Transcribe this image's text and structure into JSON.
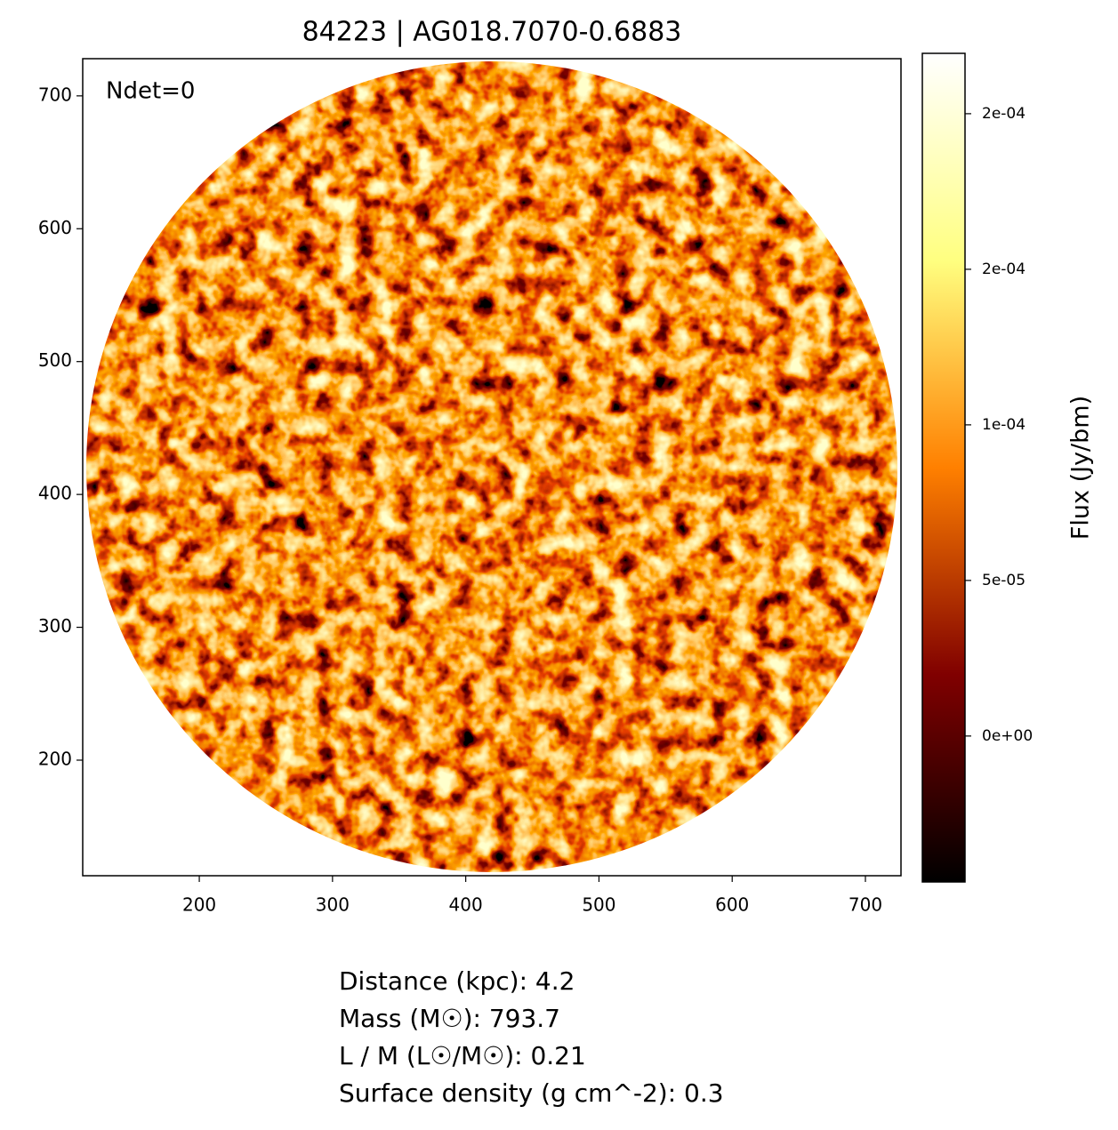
{
  "chart_data": {
    "type": "image",
    "title": "84223 | AG018.7070-0.6883",
    "annotation": "Ndet=0",
    "xlim": [
      112.5,
      726.7
    ],
    "ylim": [
      113,
      728
    ],
    "xticks": [
      200,
      300,
      400,
      500,
      600,
      700
    ],
    "yticks": [
      200,
      300,
      400,
      500,
      600,
      700
    ],
    "colormap": "afmhot",
    "colorbar_label": "Flux (Jy/bm)",
    "clim": [
      -4.69e-05,
      0.0002194
    ],
    "cticks": [
      {
        "value": 0,
        "label": "0e+00"
      },
      {
        "value": 5e-05,
        "label": "5e-05"
      },
      {
        "value": 0.0001,
        "label": "1e-04"
      },
      {
        "value": 0.00015,
        "label": "2e-04"
      },
      {
        "value": 0.0002,
        "label": "2e-04"
      }
    ],
    "info_lines": [
      "Distance (kpc): 4.2",
      "Mass (M☉): 793.7",
      "L / M (L☉/M☉): 0.21",
      "Surface density (g cm^-2): 0.3"
    ]
  }
}
